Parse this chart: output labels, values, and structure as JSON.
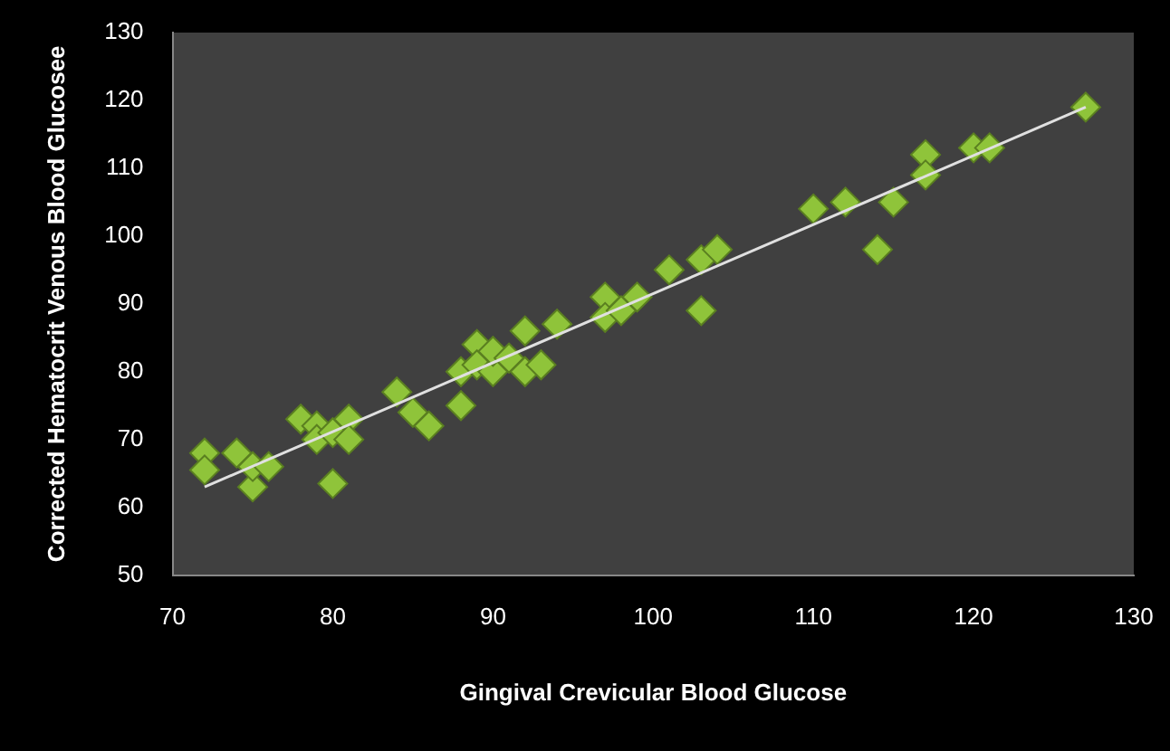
{
  "chart_data": {
    "type": "scatter",
    "xlabel": "Gingival Crevicular Blood Glucose",
    "ylabel": "Corrected Hematocrit Venous Blood Glucosee",
    "marker": "diamond",
    "grid": false,
    "legend": false,
    "xlim": [
      70,
      130
    ],
    "xticks": [
      70,
      80,
      90,
      100,
      110,
      120,
      130
    ],
    "ylim": [
      50,
      130
    ],
    "yticks": [
      50,
      60,
      70,
      80,
      90,
      100,
      110,
      120,
      130
    ],
    "series": [
      {
        "color": "#8fc43a",
        "x": [
          72,
          72,
          74,
          75,
          75,
          76,
          78,
          79,
          79,
          80,
          80,
          81,
          81,
          84,
          85,
          86,
          88,
          88,
          89,
          89,
          90,
          90,
          91,
          92,
          92,
          93,
          94,
          97,
          97,
          98,
          99,
          101,
          103,
          103,
          104,
          110,
          112,
          114,
          115,
          117,
          117,
          120,
          121,
          127
        ],
        "values": [
          68,
          65.5,
          68,
          63,
          66,
          66,
          73,
          72,
          70,
          71,
          63.5,
          73,
          70,
          77,
          74,
          72,
          75,
          80,
          84,
          81,
          80,
          83,
          82,
          86,
          80,
          81,
          87,
          91,
          88,
          89,
          91,
          95,
          96.5,
          89,
          98,
          104,
          105,
          98,
          105,
          112,
          109,
          113,
          113,
          119
        ]
      },
      {
        "type": "line",
        "color": "#e0e0e0",
        "marker": "none",
        "x": [
          72,
          127
        ],
        "values": [
          63,
          119
        ]
      }
    ]
  }
}
